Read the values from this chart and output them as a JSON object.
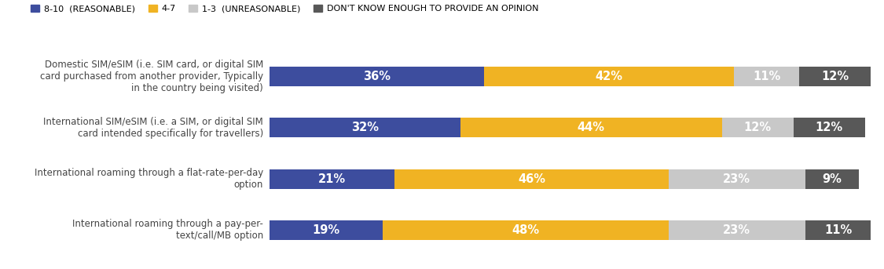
{
  "categories": [
    "International roaming through a pay-per-\ntext/call/MB option",
    "International roaming through a flat-rate-per-day\noption",
    "International SIM/eSIM (i.e. a SIM, or digital SIM\ncard intended specifically for travellers)",
    "Domestic SIM/eSIM (i.e. SIM card, or digital SIM\ncard purchased from another provider, Typically\nin the country being visited)"
  ],
  "series": [
    {
      "label": "8-10  (REASONABLE)",
      "color": "#3d4d9e",
      "values": [
        19,
        21,
        32,
        36
      ]
    },
    {
      "label": "4-7",
      "color": "#f0b323",
      "values": [
        48,
        46,
        44,
        42
      ]
    },
    {
      "label": "1-3  (UNREASONABLE)",
      "color": "#c8c8c8",
      "values": [
        23,
        23,
        12,
        11
      ]
    },
    {
      "label": "DON'T KNOW ENOUGH TO PROVIDE AN OPINION",
      "color": "#585858",
      "values": [
        11,
        9,
        12,
        12
      ]
    }
  ],
  "bar_height": 0.38,
  "background_color": "#ffffff",
  "label_fontsize": 8.5,
  "legend_fontsize": 8.0,
  "value_fontsize": 10.5
}
